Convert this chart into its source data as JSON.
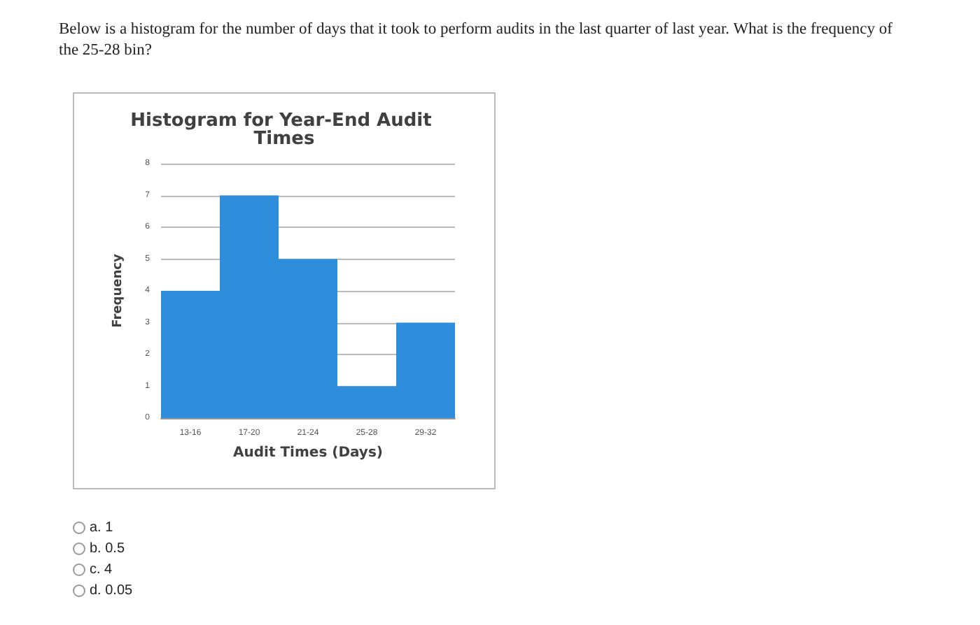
{
  "chart_data": {
    "type": "bar",
    "title": "Histogram for Year-End Audit Times",
    "xlabel": "Audit Times (Days)",
    "ylabel": "Frequency",
    "categories": [
      "13-16",
      "17-20",
      "21-24",
      "25-28",
      "29-32"
    ],
    "values": [
      4,
      7,
      5,
      1,
      3
    ],
    "color": "#2f8edb",
    "ylim": [
      0,
      8
    ],
    "yticks": [
      0,
      1,
      2,
      3,
      4,
      5,
      6,
      7,
      8
    ],
    "grid": "y",
    "annotations": [
      "Below is a histogram for the number of days that it took to perform audits in the last quarter of last year. What is the frequency of the 25-28 bin?",
      "a. 1",
      "b. 0.5",
      "c. 4",
      "d. 0.05"
    ]
  }
}
